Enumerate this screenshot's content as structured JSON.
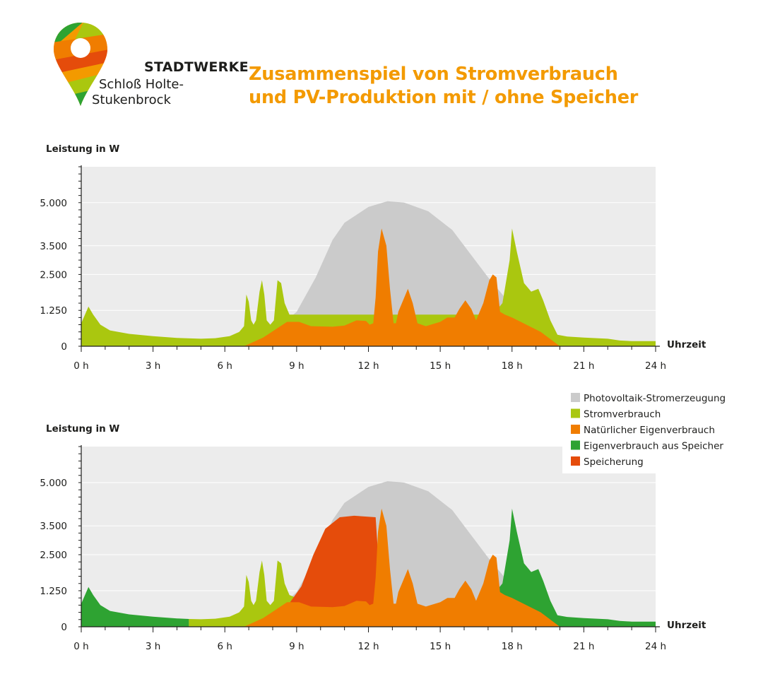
{
  "logo": {
    "line1": "STADTWERKE",
    "line2": "Schloß Holte-",
    "line3": "Stukenbrock"
  },
  "title": {
    "line1": "Zusammenspiel von Stromverbrauch",
    "line2": "und PV-Produktion mit / ohne Speicher"
  },
  "colors": {
    "pv": "#cbcbcb",
    "stromverbrauch": "#aac70f",
    "eigenverbrauch": "#f07d00",
    "speicher_verbrauch": "#2ea332",
    "speicherung": "#e54c0b",
    "plot_bg": "#ececec",
    "title": "#f39a00"
  },
  "legend": [
    {
      "key": "pv",
      "label": "Photovoltaik-Stromerzeugung"
    },
    {
      "key": "stromverbrauch",
      "label": "Stromverbrauch"
    },
    {
      "key": "eigenverbrauch",
      "label": "Natürlicher Eigenverbrauch"
    },
    {
      "key": "speicher_verbrauch",
      "label": "Eigenverbrauch aus Speicher"
    },
    {
      "key": "speicherung",
      "label": "Speicherung"
    }
  ],
  "chart_data": [
    {
      "type": "area",
      "title": "",
      "ylabel": "Leistung in W",
      "xlabel": "Uhrzeit",
      "xlim": [
        0,
        24
      ],
      "ylim": [
        0,
        6250
      ],
      "xticks": [
        0,
        3,
        6,
        9,
        12,
        15,
        18,
        21,
        24
      ],
      "xtick_labels": [
        "0 h",
        "3 h",
        "6 h",
        "9 h",
        "12 h",
        "15 h",
        "18 h",
        "21 h",
        "24 h"
      ],
      "yticks": [
        0,
        1250,
        2500,
        3500,
        5000
      ],
      "ytick_labels": [
        "0",
        "1.250",
        "2.500",
        "3.500",
        "5.000"
      ],
      "grid": true,
      "series": [
        {
          "key": "pv",
          "name": "Photovoltaik-Stromerzeugung",
          "points": [
            [
              6.8,
              0
            ],
            [
              8,
              500
            ],
            [
              9,
              1200
            ],
            [
              9.8,
              2400
            ],
            [
              10.5,
              3700
            ],
            [
              11,
              4300
            ],
            [
              12,
              4850
            ],
            [
              12.8,
              5050
            ],
            [
              13.5,
              5000
            ],
            [
              14.5,
              4700
            ],
            [
              15.5,
              4050
            ],
            [
              16,
              3500
            ],
            [
              17,
              2400
            ],
            [
              18,
              1400
            ],
            [
              19.2,
              500
            ],
            [
              20,
              0
            ]
          ]
        },
        {
          "key": "stromverbrauch",
          "name": "Stromverbrauch",
          "points": [
            [
              0,
              800
            ],
            [
              0.3,
              1380
            ],
            [
              0.5,
              1100
            ],
            [
              0.8,
              750
            ],
            [
              1.2,
              550
            ],
            [
              2,
              430
            ],
            [
              3,
              350
            ],
            [
              4,
              290
            ],
            [
              5,
              260
            ],
            [
              5.6,
              280
            ],
            [
              6.2,
              350
            ],
            [
              6.6,
              500
            ],
            [
              6.8,
              700
            ],
            [
              6.9,
              1800
            ],
            [
              7,
              1550
            ],
            [
              7.1,
              900
            ],
            [
              7.2,
              750
            ],
            [
              7.3,
              900
            ],
            [
              7.45,
              1900
            ],
            [
              7.55,
              2300
            ],
            [
              7.65,
              1800
            ],
            [
              7.75,
              900
            ],
            [
              7.9,
              750
            ],
            [
              8.05,
              900
            ],
            [
              8.2,
              2300
            ],
            [
              8.35,
              2200
            ],
            [
              8.5,
              1500
            ],
            [
              8.7,
              1100
            ],
            [
              8.9,
              1100
            ],
            [
              17.2,
              1100
            ],
            [
              17.6,
              1500
            ],
            [
              17.9,
              3000
            ],
            [
              18,
              4100
            ],
            [
              18.2,
              3300
            ],
            [
              18.5,
              2200
            ],
            [
              18.8,
              1900
            ],
            [
              19.1,
              2000
            ],
            [
              19.3,
              1600
            ],
            [
              19.6,
              900
            ],
            [
              19.9,
              400
            ],
            [
              20.3,
              340
            ],
            [
              21,
              300
            ],
            [
              22,
              260
            ],
            [
              22.5,
              200
            ],
            [
              23,
              180
            ],
            [
              24,
              180
            ]
          ]
        },
        {
          "key": "eigenverbrauch",
          "name": "Natürlicher Eigenverbrauch",
          "points": [
            [
              6.8,
              0
            ],
            [
              7.6,
              300
            ],
            [
              8.6,
              850
            ],
            [
              9.1,
              850
            ],
            [
              9.6,
              700
            ],
            [
              10.5,
              680
            ],
            [
              11,
              720
            ],
            [
              11.5,
              900
            ],
            [
              11.9,
              880
            ],
            [
              12.05,
              750
            ],
            [
              12.2,
              800
            ],
            [
              12.3,
              1700
            ],
            [
              12.4,
              3300
            ],
            [
              12.55,
              4100
            ],
            [
              12.75,
              3500
            ],
            [
              12.9,
              2000
            ],
            [
              13.05,
              800
            ],
            [
              13.15,
              800
            ],
            [
              13.25,
              1200
            ],
            [
              13.45,
              1600
            ],
            [
              13.65,
              2000
            ],
            [
              13.85,
              1500
            ],
            [
              14.05,
              800
            ],
            [
              14.4,
              700
            ],
            [
              15,
              850
            ],
            [
              15.3,
              1000
            ],
            [
              15.6,
              1000
            ],
            [
              15.8,
              1300
            ],
            [
              16.05,
              1600
            ],
            [
              16.3,
              1300
            ],
            [
              16.5,
              900
            ],
            [
              16.8,
              1500
            ],
            [
              17.05,
              2300
            ],
            [
              17.2,
              2500
            ],
            [
              17.35,
              2400
            ],
            [
              17.5,
              1200
            ],
            [
              17.7,
              1100
            ],
            [
              18,
              1000
            ],
            [
              19.2,
              500
            ],
            [
              20,
              0
            ]
          ]
        }
      ]
    },
    {
      "type": "area",
      "title": "",
      "ylabel": "Leistung in W",
      "xlabel": "Uhrzeit",
      "xlim": [
        0,
        24
      ],
      "ylim": [
        0,
        6250
      ],
      "xticks": [
        0,
        3,
        6,
        9,
        12,
        15,
        18,
        21,
        24
      ],
      "xtick_labels": [
        "0 h",
        "3 h",
        "6 h",
        "9 h",
        "12 h",
        "15 h",
        "18 h",
        "21 h",
        "24 h"
      ],
      "yticks": [
        0,
        1250,
        2500,
        3500,
        5000
      ],
      "ytick_labels": [
        "0",
        "1.250",
        "2.500",
        "3.500",
        "5.000"
      ],
      "grid": true,
      "legend_position": "top-right",
      "series": [
        {
          "key": "pv",
          "name": "Photovoltaik-Stromerzeugung",
          "points": [
            [
              6.8,
              0
            ],
            [
              8,
              500
            ],
            [
              9,
              1200
            ],
            [
              9.8,
              2400
            ],
            [
              10.5,
              3700
            ],
            [
              11,
              4300
            ],
            [
              12,
              4850
            ],
            [
              12.8,
              5050
            ],
            [
              13.5,
              5000
            ],
            [
              14.5,
              4700
            ],
            [
              15.5,
              4050
            ],
            [
              16,
              3500
            ],
            [
              17,
              2400
            ],
            [
              18,
              1400
            ],
            [
              19.2,
              500
            ],
            [
              20,
              0
            ]
          ]
        },
        {
          "key": "speicher_verbrauch",
          "name": "Eigenverbrauch aus Speicher",
          "points": [
            [
              0,
              800
            ],
            [
              0.3,
              1380
            ],
            [
              0.5,
              1100
            ],
            [
              0.8,
              750
            ],
            [
              1.2,
              550
            ],
            [
              2,
              430
            ],
            [
              3,
              350
            ],
            [
              4,
              290
            ],
            [
              4.5,
              270
            ],
            [
              4.5,
              0
            ],
            [
              16.8,
              0
            ],
            [
              17.2,
              1100
            ],
            [
              17.6,
              1500
            ],
            [
              17.9,
              3000
            ],
            [
              18,
              4100
            ],
            [
              18.2,
              3300
            ],
            [
              18.5,
              2200
            ],
            [
              18.8,
              1900
            ],
            [
              19.1,
              2000
            ],
            [
              19.3,
              1600
            ],
            [
              19.6,
              900
            ],
            [
              19.9,
              400
            ],
            [
              20.3,
              340
            ],
            [
              21,
              300
            ],
            [
              22,
              260
            ],
            [
              22.5,
              200
            ],
            [
              23,
              180
            ],
            [
              24,
              180
            ]
          ]
        },
        {
          "key": "stromverbrauch",
          "name": "Stromverbrauch",
          "points": [
            [
              4.5,
              0
            ],
            [
              4.5,
              270
            ],
            [
              5,
              260
            ],
            [
              5.6,
              280
            ],
            [
              6.2,
              350
            ],
            [
              6.6,
              500
            ],
            [
              6.8,
              700
            ],
            [
              6.9,
              1800
            ],
            [
              7,
              1550
            ],
            [
              7.1,
              900
            ],
            [
              7.2,
              750
            ],
            [
              7.3,
              900
            ],
            [
              7.45,
              1900
            ],
            [
              7.55,
              2300
            ],
            [
              7.65,
              1800
            ],
            [
              7.75,
              900
            ],
            [
              7.9,
              750
            ],
            [
              8.05,
              900
            ],
            [
              8.2,
              2300
            ],
            [
              8.35,
              2200
            ],
            [
              8.5,
              1500
            ],
            [
              8.7,
              1100
            ],
            [
              9,
              1000
            ],
            [
              9,
              0
            ]
          ]
        },
        {
          "key": "speicherung",
          "name": "Speicherung",
          "points": [
            [
              8.6,
              700
            ],
            [
              9.2,
              1400
            ],
            [
              9.7,
              2500
            ],
            [
              10.2,
              3400
            ],
            [
              10.8,
              3800
            ],
            [
              11.4,
              3850
            ],
            [
              12.3,
              3800
            ],
            [
              12.6,
              0
            ],
            [
              8.6,
              0
            ]
          ]
        },
        {
          "key": "eigenverbrauch",
          "name": "Natürlicher Eigenverbrauch",
          "points": [
            [
              6.8,
              0
            ],
            [
              7.6,
              300
            ],
            [
              8.6,
              850
            ],
            [
              9.1,
              850
            ],
            [
              9.6,
              700
            ],
            [
              10.5,
              680
            ],
            [
              11,
              720
            ],
            [
              11.5,
              900
            ],
            [
              11.9,
              880
            ],
            [
              12.05,
              750
            ],
            [
              12.2,
              800
            ],
            [
              12.3,
              1700
            ],
            [
              12.4,
              3300
            ],
            [
              12.55,
              4100
            ],
            [
              12.75,
              3500
            ],
            [
              12.9,
              2000
            ],
            [
              13.05,
              800
            ],
            [
              13.15,
              800
            ],
            [
              13.25,
              1200
            ],
            [
              13.45,
              1600
            ],
            [
              13.65,
              2000
            ],
            [
              13.85,
              1500
            ],
            [
              14.05,
              800
            ],
            [
              14.4,
              700
            ],
            [
              15,
              850
            ],
            [
              15.3,
              1000
            ],
            [
              15.6,
              1000
            ],
            [
              15.8,
              1300
            ],
            [
              16.05,
              1600
            ],
            [
              16.3,
              1300
            ],
            [
              16.5,
              900
            ],
            [
              16.8,
              1500
            ],
            [
              17.05,
              2300
            ],
            [
              17.2,
              2500
            ],
            [
              17.35,
              2400
            ],
            [
              17.5,
              1200
            ],
            [
              17.7,
              1100
            ],
            [
              18,
              1000
            ],
            [
              19.2,
              500
            ],
            [
              20,
              0
            ]
          ]
        }
      ]
    }
  ]
}
